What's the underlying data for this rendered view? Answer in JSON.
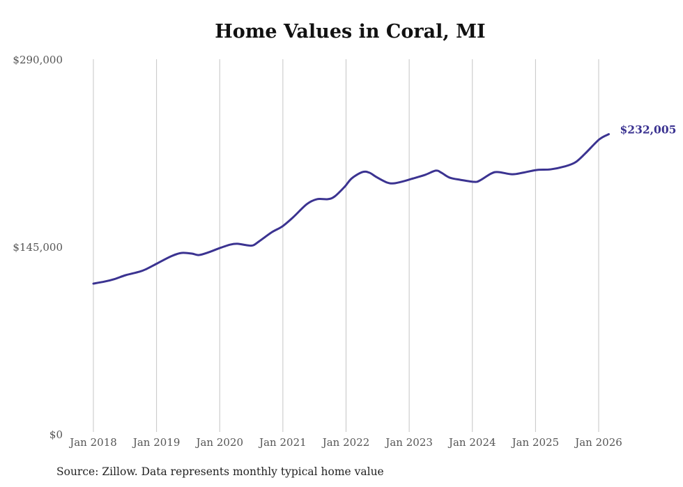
{
  "chart_data": {
    "type": "line",
    "title": "Home Values in Coral, MI",
    "xlabel": "",
    "ylabel": "",
    "ylim": [
      0,
      290000
    ],
    "xlim": [
      2018,
      2026.2
    ],
    "grid": "vertical",
    "y_ticks": [
      {
        "value": 0,
        "label": "$0"
      },
      {
        "value": 145000,
        "label": "$145,000"
      },
      {
        "value": 290000,
        "label": "$290,000"
      }
    ],
    "x_ticks": [
      {
        "value": 2018,
        "label": "Jan 2018"
      },
      {
        "value": 2019,
        "label": "Jan 2019"
      },
      {
        "value": 2020,
        "label": "Jan 2020"
      },
      {
        "value": 2021,
        "label": "Jan 2021"
      },
      {
        "value": 2022,
        "label": "Jan 2022"
      },
      {
        "value": 2023,
        "label": "Jan 2023"
      },
      {
        "value": 2024,
        "label": "Jan 2024"
      },
      {
        "value": 2025,
        "label": "Jan 2025"
      },
      {
        "value": 2026,
        "label": "Jan 2026"
      }
    ],
    "series": [
      {
        "name": "Typical home value",
        "color": "#3b3391",
        "points": [
          [
            2018.0,
            116400
          ],
          [
            2018.18,
            118000
          ],
          [
            2018.34,
            120000
          ],
          [
            2018.51,
            122900
          ],
          [
            2018.73,
            125600
          ],
          [
            2018.84,
            127700
          ],
          [
            2019.01,
            132000
          ],
          [
            2019.23,
            137500
          ],
          [
            2019.39,
            140100
          ],
          [
            2019.56,
            139600
          ],
          [
            2019.67,
            138500
          ],
          [
            2019.83,
            140700
          ],
          [
            2020.0,
            143900
          ],
          [
            2020.17,
            146600
          ],
          [
            2020.28,
            147200
          ],
          [
            2020.44,
            146000
          ],
          [
            2020.53,
            146000
          ],
          [
            2020.63,
            149300
          ],
          [
            2020.83,
            156300
          ],
          [
            2020.99,
            160600
          ],
          [
            2021.16,
            167600
          ],
          [
            2021.38,
            177900
          ],
          [
            2021.54,
            181700
          ],
          [
            2021.71,
            181700
          ],
          [
            2021.82,
            183800
          ],
          [
            2021.98,
            191400
          ],
          [
            2022.09,
            197800
          ],
          [
            2022.26,
            202700
          ],
          [
            2022.37,
            202200
          ],
          [
            2022.48,
            198900
          ],
          [
            2022.65,
            194600
          ],
          [
            2022.76,
            194000
          ],
          [
            2022.92,
            195700
          ],
          [
            2023.03,
            197300
          ],
          [
            2023.25,
            200500
          ],
          [
            2023.42,
            203800
          ],
          [
            2023.51,
            202200
          ],
          [
            2023.64,
            198400
          ],
          [
            2023.81,
            196700
          ],
          [
            2024.03,
            195100
          ],
          [
            2024.12,
            196200
          ],
          [
            2024.3,
            201600
          ],
          [
            2024.41,
            202700
          ],
          [
            2024.63,
            201000
          ],
          [
            2024.8,
            202200
          ],
          [
            2025.02,
            204300
          ],
          [
            2025.24,
            204800
          ],
          [
            2025.46,
            207000
          ],
          [
            2025.63,
            210200
          ],
          [
            2025.79,
            217200
          ],
          [
            2026.01,
            228000
          ],
          [
            2026.16,
            232005
          ]
        ],
        "end_label": "$232,005"
      }
    ]
  },
  "source": "Source: Zillow. Data represents monthly typical home value"
}
